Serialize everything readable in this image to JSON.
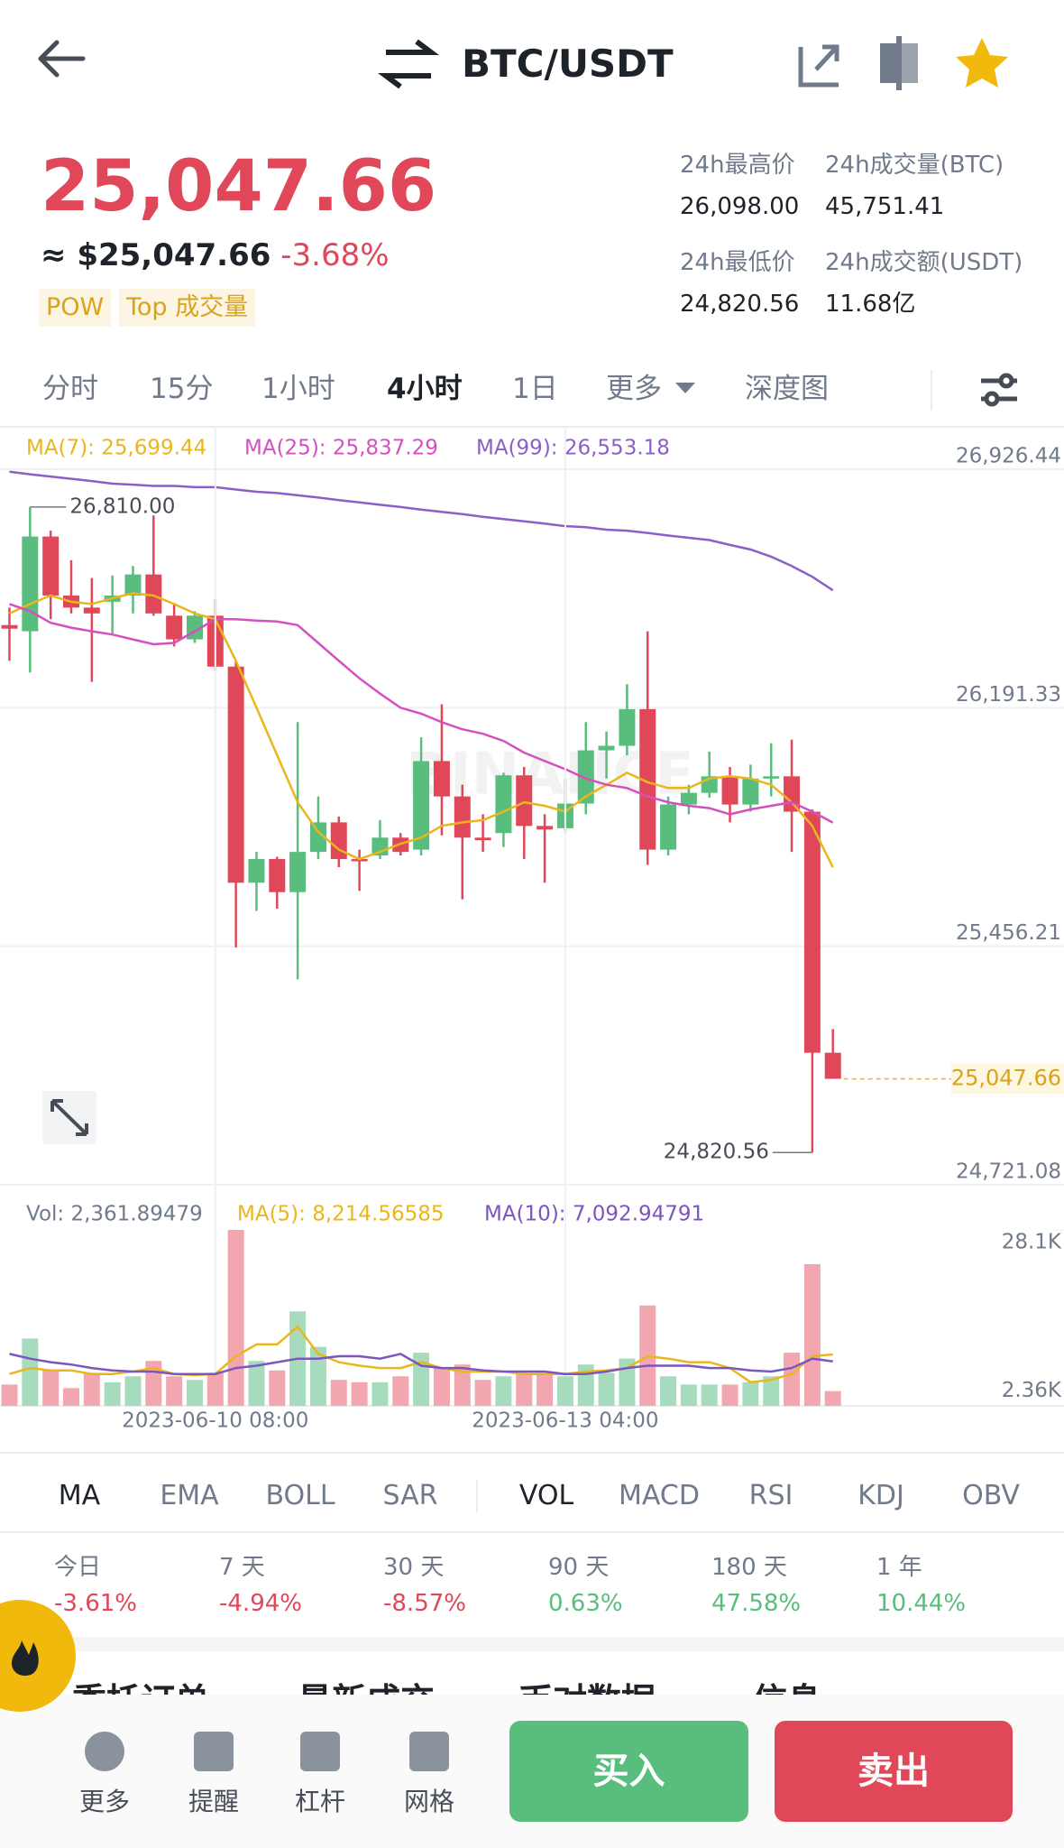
{
  "header": {
    "title": "BTC/USDT"
  },
  "ticker": {
    "price": "25,047.66",
    "approx": "≈ $25,047.66",
    "change": "-3.68%",
    "tags": [
      "POW",
      "Top 成交量"
    ]
  },
  "stats": [
    {
      "label": "24h最高价",
      "value": "26,098.00"
    },
    {
      "label": "24h成交量(BTC)",
      "value": "45,751.41"
    },
    {
      "label": "24h最低价",
      "value": "24,820.56"
    },
    {
      "label": "24h成交额(USDT)",
      "value": "11.68亿"
    }
  ],
  "intervals": {
    "items": [
      "分时",
      "15分",
      "1小时",
      "4小时",
      "1日",
      "更多",
      "深度图"
    ],
    "active": 3
  },
  "chart_data": [
    {
      "type": "candlestick",
      "watermark": "BINANCE",
      "up_color": "#58bd7d",
      "down_color": "#e0485a",
      "open": [
        26446,
        26427,
        26719,
        26537,
        26500,
        26518,
        26537,
        26602,
        26475,
        26402,
        26475,
        26318,
        25652,
        25725,
        25623,
        25747,
        25838,
        25725,
        25736,
        25791,
        25754,
        26027,
        25918,
        25791,
        25805,
        25983,
        25827,
        25820,
        25896,
        26060,
        26074,
        26187,
        25754,
        25893,
        25929,
        25980,
        25893,
        25973,
        25980,
        25871,
        25128
      ],
      "high": [
        26500,
        26810,
        26737,
        26646,
        26591,
        26599,
        26628,
        26784,
        26511,
        26489,
        26526,
        26336,
        25747,
        25732,
        26147,
        25918,
        25856,
        25754,
        25845,
        25805,
        26100,
        26202,
        25954,
        25863,
        25991,
        26009,
        25863,
        25973,
        26147,
        26118,
        26264,
        26427,
        25918,
        25954,
        26056,
        26009,
        26016,
        26082,
        26093,
        25878,
        25201
      ],
      "low": [
        26336,
        26300,
        26464,
        26482,
        26271,
        26420,
        26482,
        26475,
        26380,
        26391,
        26307,
        25452,
        25565,
        25572,
        25354,
        25725,
        25700,
        25627,
        25725,
        25736,
        25736,
        25798,
        25601,
        25747,
        25762,
        25725,
        25652,
        25805,
        25863,
        25973,
        26045,
        25707,
        25736,
        25863,
        25914,
        25838,
        25871,
        25918,
        25747,
        24820.56,
        25047.66
      ],
      "close": [
        26435,
        26719,
        26537,
        26500,
        26482,
        26537,
        26602,
        26482,
        26402,
        26475,
        26318,
        25652,
        25725,
        25623,
        25747,
        25838,
        25725,
        25718,
        25791,
        25747,
        26027,
        25918,
        25791,
        25783,
        25983,
        25827,
        25816,
        25896,
        26060,
        26074,
        26187,
        25754,
        25893,
        25929,
        25980,
        25893,
        25973,
        25980,
        25871,
        25128,
        25047.66
      ],
      "lines": [
        {
          "name": "MA(7): 25,699.44",
          "color": "#e9b61c",
          "values": [
            26482,
            26511,
            26537,
            26518,
            26511,
            26529,
            26544,
            26537,
            26511,
            26482,
            26464,
            26336,
            26191,
            26045,
            25900,
            25809,
            25754,
            25725,
            25747,
            25772,
            25791,
            25827,
            25838,
            25845,
            25871,
            25900,
            25889,
            25871,
            25918,
            25954,
            25991,
            25962,
            25944,
            25944,
            25973,
            25980,
            25973,
            25954,
            25900,
            25827,
            25699.44
          ]
        },
        {
          "name": "MA(25): 25,837.29",
          "color": "#d64fc0",
          "values": [
            26511,
            26489,
            26453,
            26438,
            26427,
            26417,
            26402,
            26387,
            26391,
            26427,
            26464,
            26464,
            26460,
            26457,
            26446,
            26391,
            26336,
            26282,
            26235,
            26191,
            26173,
            26147,
            26125,
            26111,
            26089,
            26053,
            26027,
            26002,
            25973,
            25954,
            25944,
            25918,
            25900,
            25889,
            25882,
            25863,
            25878,
            25889,
            25900,
            25871,
            25837.29
          ]
        },
        {
          "name": "MA(99): 26,553.18",
          "color": "#8a5fc7",
          "values": [
            26919,
            26911,
            26904,
            26897,
            26890,
            26882,
            26879,
            26875,
            26875,
            26871,
            26871,
            26864,
            26857,
            26853,
            26846,
            26839,
            26831,
            26824,
            26817,
            26810,
            26802,
            26795,
            26788,
            26780,
            26773,
            26766,
            26759,
            26751,
            26748,
            26740,
            26737,
            26730,
            26722,
            26715,
            26708,
            26693,
            26679,
            26657,
            26628,
            26595,
            26553.18
          ]
        }
      ],
      "ylim": [
        24721.08,
        26926.44
      ],
      "yticks": [
        {
          "value": 26926.44,
          "label": "26,926.44"
        },
        {
          "value": 26191.33,
          "label": "26,191.33"
        },
        {
          "value": 25456.21,
          "label": "25,456.21"
        },
        {
          "value": 24721.08,
          "label": "24,721.08"
        }
      ],
      "grid": true,
      "max_label": "26,810.00",
      "min_label": "24,820.56",
      "last_label": "25,047.66"
    },
    {
      "type": "bar",
      "title": "Vol: 2,361.89479",
      "up_color": "#a6dcbd",
      "down_color": "#f2a6af",
      "categories": [
        null,
        null,
        null,
        null,
        null,
        null,
        null,
        null,
        null,
        null,
        "2023-06-10 08:00",
        null,
        null,
        null,
        null,
        null,
        null,
        null,
        null,
        null,
        null,
        null,
        null,
        null,
        null,
        null,
        null,
        "2023-06-13 04:00",
        null,
        null,
        null,
        null,
        null,
        null,
        null,
        null,
        null,
        null,
        null,
        null,
        null
      ],
      "values": [
        3400,
        10750,
        5660,
        2830,
        5280,
        3770,
        4720,
        7170,
        4720,
        4150,
        5280,
        28100,
        7170,
        5660,
        15090,
        9430,
        4150,
        3770,
        3770,
        4720,
        8490,
        6040,
        6600,
        4150,
        4720,
        5280,
        5280,
        4720,
        6600,
        5280,
        7550,
        16030,
        4720,
        3400,
        3400,
        3400,
        3770,
        4720,
        8490,
        22630,
        2361.89479
      ],
      "lines": [
        {
          "name": "MA(5): 8,214.56585",
          "color": "#e9b61c",
          "values": [
            5090,
            6040,
            5660,
            5660,
            5090,
            5090,
            5470,
            6040,
            5090,
            4900,
            5090,
            7920,
            9810,
            9810,
            12640,
            8300,
            6980,
            6410,
            6040,
            6040,
            6980,
            6040,
            5470,
            5470,
            5470,
            5090,
            5090,
            5090,
            5470,
            5660,
            6040,
            7920,
            7540,
            6980,
            6980,
            6040,
            3770,
            4150,
            5090,
            7920,
            8214.56585
          ]
        },
        {
          "name": "MA(10): 7,092.94791",
          "color": "#7b55c0",
          "values": [
            8300,
            7540,
            6980,
            6600,
            6040,
            5660,
            5470,
            5470,
            5090,
            5090,
            5090,
            6040,
            6410,
            6980,
            7540,
            7540,
            7920,
            7920,
            7540,
            8300,
            6410,
            6040,
            6040,
            5660,
            5470,
            5470,
            5470,
            5090,
            5090,
            5470,
            6040,
            6410,
            6410,
            6410,
            6040,
            6040,
            5660,
            5470,
            6040,
            7540,
            7092.94791
          ]
        }
      ],
      "ylim": [
        0,
        28100
      ],
      "yticks": [
        {
          "value": 28100,
          "label": "28.1K"
        },
        {
          "value": 2360,
          "label": "2.36K"
        }
      ],
      "grid": true
    }
  ],
  "indicators": {
    "main": [
      "MA",
      "EMA",
      "BOLL",
      "SAR"
    ],
    "sub": [
      "VOL",
      "MACD",
      "RSI",
      "KDJ",
      "OBV"
    ],
    "active": [
      "MA",
      "VOL"
    ]
  },
  "performance": [
    {
      "label": "今日",
      "value": "-3.61%"
    },
    {
      "label": "7 天",
      "value": "-4.94%"
    },
    {
      "label": "30 天",
      "value": "-8.57%"
    },
    {
      "label": "90 天",
      "value": "0.63%"
    },
    {
      "label": "180 天",
      "value": "47.58%"
    },
    {
      "label": "1 年",
      "value": "10.44%"
    }
  ],
  "sections": [
    "委托订单",
    "最新成交",
    "币对数据",
    "信息"
  ],
  "toolbar": [
    "更多",
    "提醒",
    "杠杆",
    "网格"
  ],
  "actions": {
    "buy": "买入",
    "sell": "卖出"
  }
}
